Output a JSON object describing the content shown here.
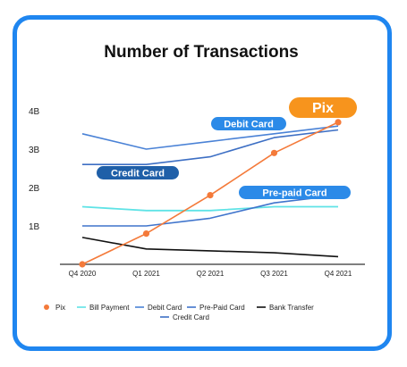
{
  "chart_data": {
    "type": "line",
    "title": "Number of Transactions",
    "xlabel": "",
    "ylabel": "",
    "categories": [
      "Q4 2020",
      "Q1 2021",
      "Q2 2021",
      "Q3 2021",
      "Q4 2021"
    ],
    "y_ticks": [
      "1B",
      "2B",
      "3B",
      "4B"
    ],
    "ylim": [
      0,
      4.5
    ],
    "grid": false,
    "legend_position": "bottom",
    "series": [
      {
        "name": "Pix",
        "color": "#f47a3a",
        "marker": "circle",
        "values": [
          0.0,
          0.8,
          1.8,
          2.9,
          3.7
        ]
      },
      {
        "name": "Bill Payment",
        "color": "#5fe3e6",
        "values": [
          1.5,
          1.4,
          1.4,
          1.5,
          1.5
        ]
      },
      {
        "name": "Debit Card",
        "color": "#4a82d6",
        "values": [
          3.4,
          3.0,
          3.2,
          3.4,
          3.6
        ]
      },
      {
        "name": "Pre-Paid Card",
        "color": "#3f74cc",
        "values": [
          1.0,
          1.0,
          1.2,
          1.6,
          1.8
        ]
      },
      {
        "name": "Bank Transfer",
        "color": "#111111",
        "values": [
          0.7,
          0.4,
          0.35,
          0.3,
          0.2
        ]
      },
      {
        "name": "Credit Card",
        "color": "#3d6fc4",
        "values": [
          2.6,
          2.6,
          2.8,
          3.3,
          3.5
        ]
      }
    ],
    "annotations": [
      {
        "text": "Debit Card",
        "color": "#2b8ae8"
      },
      {
        "text": "Credit Card",
        "color": "#1f5fa8"
      },
      {
        "text": "Pre-paid Card",
        "color": "#2b8ae8"
      },
      {
        "text": "Pix",
        "color": "#f7941d"
      }
    ]
  }
}
